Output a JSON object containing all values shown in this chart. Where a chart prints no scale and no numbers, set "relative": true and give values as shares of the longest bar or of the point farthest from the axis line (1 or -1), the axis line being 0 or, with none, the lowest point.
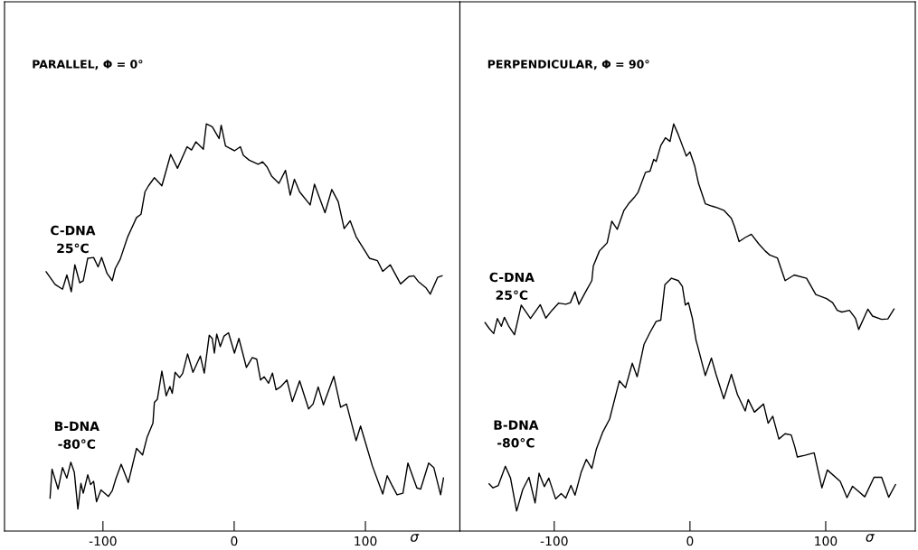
{
  "chart_data": [
    {
      "type": "line",
      "title": "PARALLEL, Φ = 0°",
      "xlabel": "σ",
      "relative": true,
      "xlim": [
        -175,
        172
      ],
      "xticks": [
        -100,
        0,
        100
      ],
      "tick_labels": "x",
      "grid": false,
      "series": [
        {
          "name": "C-DNA\n25°C",
          "color": "#000000",
          "x": [
            -143.3,
            -136.5,
            -130.8,
            -127.5,
            -124.1,
            -121.4,
            -117.7,
            -115.0,
            -111.6,
            -107.1,
            -103.7,
            -101.0,
            -96.9,
            -92.9,
            -90.6,
            -86.8,
            -81.1,
            -74.4,
            -71.0,
            -68.0,
            -65.3,
            -60.8,
            -55.1,
            -48.4,
            -43.2,
            -35.9,
            -32.5,
            -29.2,
            -23.5,
            -21.2,
            -16.7,
            -11.5,
            -9.9,
            -6.6,
            0.2,
            4.7,
            7.0,
            11.5,
            18.3,
            21.7,
            25.1,
            28.5,
            34.1,
            39.1,
            42.7,
            45.9,
            49.9,
            57.9,
            61.2,
            69.2,
            74.4,
            79.3,
            83.8,
            88.4,
            92.9,
            103.1,
            109.2,
            113.2,
            118.9,
            126.8,
            133.1,
            136.9,
            140.3,
            146.0,
            149.4,
            155.0,
            158.4
          ],
          "values": [
            0.637,
            0.606,
            0.594,
            0.629,
            0.588,
            0.654,
            0.61,
            0.615,
            0.67,
            0.672,
            0.649,
            0.672,
            0.633,
            0.615,
            0.645,
            0.668,
            0.723,
            0.77,
            0.778,
            0.833,
            0.848,
            0.868,
            0.848,
            0.925,
            0.891,
            0.944,
            0.936,
            0.956,
            0.938,
            1,
            0.993,
            0.964,
            0.997,
            0.946,
            0.934,
            0.944,
            0.923,
            0.911,
            0.901,
            0.907,
            0.894,
            0.872,
            0.854,
            0.886,
            0.825,
            0.864,
            0.833,
            0.801,
            0.852,
            0.782,
            0.839,
            0.809,
            0.743,
            0.762,
            0.723,
            0.67,
            0.664,
            0.638,
            0.654,
            0.607,
            0.625,
            0.627,
            0.613,
            0.598,
            0.582,
            0.623,
            0.627
          ]
        },
        {
          "name": "B-DNA\n-80°C",
          "color": "#000000",
          "x": [
            -140.3,
            -138.8,
            -134.2,
            -130.8,
            -127.5,
            -124.5,
            -121.8,
            -119.1,
            -116.8,
            -115.0,
            -111.6,
            -109.4,
            -107.1,
            -104.9,
            -101.5,
            -95.8,
            -92.9,
            -90.2,
            -86.1,
            -80.7,
            -74.4,
            -69.8,
            -66.4,
            -61.9,
            -60.8,
            -58.5,
            -55.1,
            -51.8,
            -49.0,
            -47.2,
            -45.0,
            -41.6,
            -39.3,
            -35.5,
            -31.4,
            -25.8,
            -22.8,
            -19.0,
            -16.7,
            -15.1,
            -13.3,
            -10.6,
            -7.7,
            -4.3,
            0.2,
            3.6,
            9.3,
            13.8,
            17.2,
            20.1,
            22.8,
            26.2,
            29.2,
            31.9,
            35.3,
            40.2,
            44.3,
            49.9,
            56.7,
            60.1,
            64.0,
            68.0,
            75.9,
            81.1,
            85.6,
            92.9,
            96.3,
            105.3,
            113.2,
            116.6,
            120.0,
            124.1,
            128.6,
            132.4,
            139.2,
            142.1,
            148.2,
            152.1,
            157.3,
            159.5
          ],
          "values": [
            0.081,
            0.152,
            0.103,
            0.156,
            0.13,
            0.169,
            0.144,
            0.054,
            0.117,
            0.093,
            0.138,
            0.114,
            0.122,
            0.072,
            0.101,
            0.085,
            0.099,
            0.128,
            0.164,
            0.119,
            0.203,
            0.187,
            0.23,
            0.265,
            0.316,
            0.324,
            0.393,
            0.332,
            0.355,
            0.338,
            0.39,
            0.377,
            0.387,
            0.435,
            0.39,
            0.43,
            0.388,
            0.481,
            0.473,
            0.437,
            0.484,
            0.453,
            0.479,
            0.487,
            0.437,
            0.473,
            0.402,
            0.426,
            0.422,
            0.371,
            0.379,
            0.363,
            0.388,
            0.347,
            0.354,
            0.371,
            0.318,
            0.369,
            0.3,
            0.312,
            0.354,
            0.31,
            0.38,
            0.304,
            0.312,
            0.222,
            0.258,
            0.16,
            0.091,
            0.136,
            0.114,
            0.089,
            0.093,
            0.167,
            0.106,
            0.103,
            0.167,
            0.156,
            0.089,
            0.13
          ]
        }
      ]
    },
    {
      "type": "line",
      "title": "PERPENDICULAR, Φ = 90°",
      "xlabel": "σ",
      "relative": true,
      "xlim": [
        -169.5,
        166
      ],
      "xticks": [
        -100,
        0,
        100
      ],
      "tick_labels": "x",
      "grid": false,
      "series": [
        {
          "name": "C-DNA\n25°C",
          "color": "#000000",
          "x": [
            -151.0,
            -148.0,
            -144.6,
            -141.9,
            -139.0,
            -136.7,
            -133.3,
            -129.3,
            -124.3,
            -117.5,
            -110.3,
            -106.2,
            -101.7,
            -96.7,
            -91.5,
            -88.1,
            -84.7,
            -81.8,
            -76.8,
            -72.3,
            -71.2,
            -66.7,
            -64.4,
            -61.0,
            -57.6,
            -53.6,
            -48.6,
            -45.2,
            -40.7,
            -38.4,
            -32.8,
            -29.4,
            -26.7,
            -24.9,
            -21.5,
            -18.1,
            -14.7,
            -12.0,
            -9.0,
            -5.6,
            -2.7,
            0.0,
            3.4,
            6.3,
            11.3,
            16.3,
            20.3,
            24.9,
            30.5,
            32.8,
            36.2,
            40.7,
            45.2,
            50.8,
            55.4,
            58.8,
            64.4,
            70.1,
            76.8,
            85.9,
            92.7,
            100.6,
            105.1,
            108.5,
            111.9,
            117.5,
            122.0,
            124.3,
            131.1,
            134.5,
            141.2,
            145.8,
            150.3
          ],
          "values": [
            0.512,
            0.498,
            0.485,
            0.522,
            0.503,
            0.525,
            0.502,
            0.482,
            0.555,
            0.522,
            0.556,
            0.523,
            0.542,
            0.56,
            0.557,
            0.561,
            0.588,
            0.557,
            0.588,
            0.615,
            0.651,
            0.688,
            0.696,
            0.708,
            0.761,
            0.741,
            0.788,
            0.804,
            0.821,
            0.831,
            0.881,
            0.884,
            0.913,
            0.908,
            0.947,
            0.966,
            0.957,
            1,
            0.977,
            0.947,
            0.921,
            0.931,
            0.898,
            0.854,
            0.804,
            0.798,
            0.794,
            0.788,
            0.768,
            0.748,
            0.711,
            0.721,
            0.729,
            0.705,
            0.688,
            0.678,
            0.671,
            0.615,
            0.629,
            0.621,
            0.581,
            0.571,
            0.561,
            0.542,
            0.538,
            0.542,
            0.522,
            0.495,
            0.545,
            0.528,
            0.52,
            0.521,
            0.545
          ]
        },
        {
          "name": "B-DNA\n-80°C",
          "color": "#000000",
          "x": [
            -148.0,
            -145.1,
            -141.2,
            -136.0,
            -132.2,
            -127.7,
            -123.2,
            -118.6,
            -114.1,
            -111.2,
            -107.3,
            -104.0,
            -99.0,
            -94.9,
            -91.5,
            -87.7,
            -84.7,
            -80.2,
            -76.4,
            -72.3,
            -68.9,
            -64.4,
            -59.2,
            -52.0,
            -47.5,
            -42.5,
            -38.9,
            -33.9,
            -29.4,
            -24.9,
            -21.5,
            -18.5,
            -13.6,
            -8.6,
            -5.6,
            -3.4,
            -1.1,
            1.8,
            4.5,
            5.6,
            11.3,
            15.8,
            19.2,
            24.9,
            30.5,
            35.0,
            40.7,
            42.9,
            47.5,
            54.2,
            57.6,
            61.0,
            65.5,
            70.1,
            74.6,
            77.3,
            79.1,
            84.7,
            91.5,
            97.2,
            101.2,
            110.7,
            115.7,
            119.8,
            124.3,
            128.8,
            135.6,
            141.2,
            146.4,
            151.4
          ],
          "values": [
            0.116,
            0.106,
            0.112,
            0.159,
            0.13,
            0.049,
            0.102,
            0.132,
            0.069,
            0.142,
            0.109,
            0.13,
            0.079,
            0.092,
            0.081,
            0.112,
            0.088,
            0.144,
            0.176,
            0.154,
            0.202,
            0.242,
            0.275,
            0.369,
            0.352,
            0.412,
            0.379,
            0.458,
            0.488,
            0.515,
            0.518,
            0.605,
            0.621,
            0.615,
            0.601,
            0.555,
            0.561,
            0.522,
            0.468,
            0.455,
            0.382,
            0.425,
            0.385,
            0.325,
            0.385,
            0.335,
            0.295,
            0.323,
            0.292,
            0.312,
            0.265,
            0.282,
            0.226,
            0.239,
            0.236,
            0.206,
            0.182,
            0.186,
            0.192,
            0.106,
            0.15,
            0.122,
            0.082,
            0.11,
            0.097,
            0.084,
            0.132,
            0.132,
            0.083,
            0.114
          ]
        }
      ]
    }
  ]
}
